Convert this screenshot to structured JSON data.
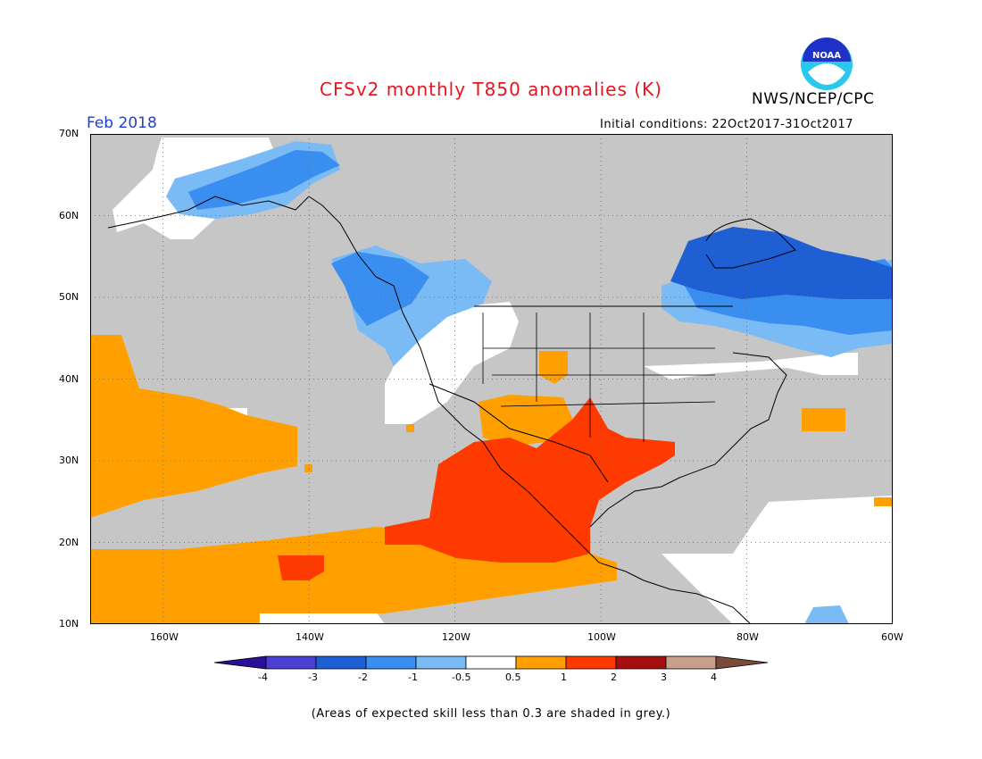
{
  "title": "CFSv2 monthly T850 anomalies (K)",
  "agency": "NWS/NCEP/CPC",
  "logo_text": "NOAA",
  "period": "Feb 2018",
  "initial_conditions": "Initial conditions: 22Oct2017-31Oct2017",
  "map": {
    "lon_range": [
      -170,
      -60
    ],
    "lat_range": [
      10,
      70
    ],
    "lat_ticks": [
      "70N",
      "60N",
      "50N",
      "40N",
      "30N",
      "20N",
      "10N"
    ],
    "lon_ticks": [
      "160W",
      "140W",
      "120W",
      "100W",
      "80W",
      "60W"
    ],
    "grey_meaning": "skill < 0.3"
  },
  "colorbar": {
    "labels": [
      "-4",
      "-3",
      "-2",
      "-1",
      "-0.5",
      "0.5",
      "1",
      "2",
      "3",
      "4"
    ],
    "colors": [
      "#2a0f9a",
      "#4b3fd4",
      "#1f5fd4",
      "#3a8ef0",
      "#7abaf5",
      "#ffffff",
      "#ffa000",
      "#ff3a00",
      "#a50f0f",
      "#c8a08c",
      "#7a4a3a"
    ]
  },
  "colors": {
    "grey": "#c6c6c6",
    "white": "#ffffff",
    "lightblue": "#7abaf5",
    "blue": "#3a8ef0",
    "darkblue": "#1f5fd4",
    "orange": "#ffa000",
    "red": "#ff3a00"
  },
  "note": "(Areas of expected skill less than 0.3 are shaded in grey.)"
}
